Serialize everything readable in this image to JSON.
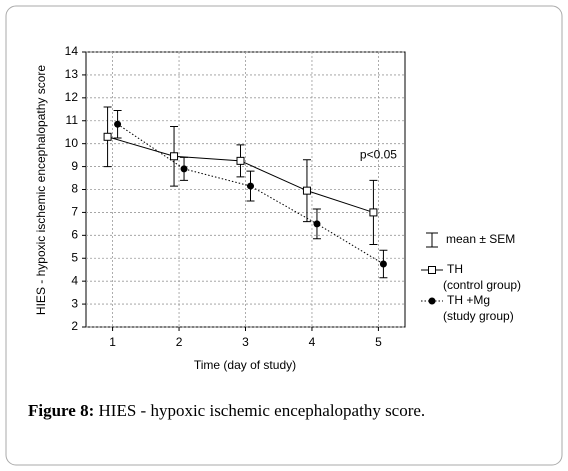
{
  "chart_data": {
    "type": "errorbar-line",
    "xlabel": "Time  (day of study)",
    "ylabel": "HIES - hypoxic ischemic encephalopathy score",
    "x": [
      1,
      2,
      3,
      4,
      5
    ],
    "series": [
      {
        "name": "TH",
        "group": "(control group)",
        "color": "#000000",
        "line_style": "solid",
        "marker": "square",
        "values": [
          10.3,
          9.45,
          9.25,
          7.95,
          7.0
        ],
        "errors": [
          1.3,
          1.3,
          0.7,
          1.35,
          1.4
        ]
      },
      {
        "name": "TH +Mg",
        "group": "(study group)",
        "color": "#000000",
        "line_style": "dotted",
        "marker": "circle",
        "values": [
          10.85,
          8.9,
          8.15,
          6.5,
          4.75
        ],
        "errors": [
          0.6,
          0.5,
          0.65,
          0.65,
          0.6
        ]
      }
    ],
    "error_legend": "mean ± SEM",
    "annotation": {
      "text": "p<0.05",
      "x": 5,
      "y": 9.5
    },
    "xlim": [
      0.6,
      5.4
    ],
    "xticks": [
      1,
      2,
      3,
      4,
      5
    ],
    "ylim": [
      2,
      14
    ],
    "yticks": [
      2,
      3,
      4,
      5,
      6,
      7,
      8,
      9,
      10,
      11,
      12,
      13,
      14
    ],
    "grid": true
  },
  "caption": {
    "label": "Figure 8:",
    "text": "HIES - hypoxic ischemic encephalopathy score."
  }
}
